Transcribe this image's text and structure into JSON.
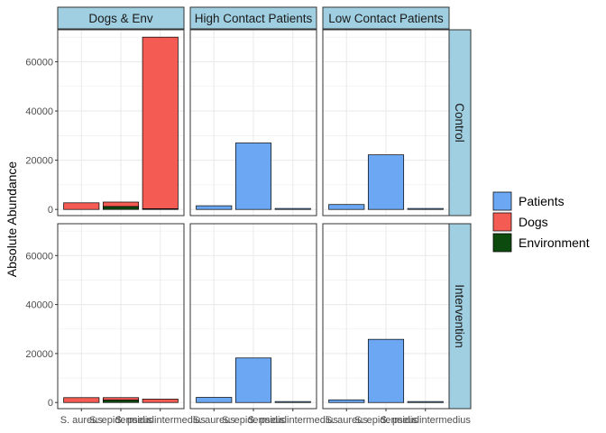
{
  "chart_data": {
    "type": "bar",
    "stacked": true,
    "ylabel": "Absolute Abundance",
    "xlabel": "",
    "ylim": [
      -2500,
      73000
    ],
    "y_ticks": [
      "0",
      "20000",
      "40000",
      "60000"
    ],
    "categories": [
      "S. aureus",
      "S. epidermidis",
      "S. pseudintermedius"
    ],
    "columns": [
      "Dogs & Env",
      "High Contact Patients",
      "Low Contact Patients"
    ],
    "rows": [
      "Control",
      "Intervention"
    ],
    "legend": {
      "position": "right",
      "entries": [
        {
          "name": "Patients",
          "color": "#6BA7F2"
        },
        {
          "name": "Dogs",
          "color": "#F35B53"
        },
        {
          "name": "Environment",
          "color": "#0C4A0E"
        }
      ]
    },
    "colors": {
      "strip_bg": "#A0CFE2",
      "grid": "#EBEBEB",
      "panel_border": "#333333",
      "bar_edge": "#000000"
    },
    "panels": [
      {
        "row": "Control",
        "column": "Dogs & Env",
        "bars": [
          {
            "category": "S. aureus",
            "segments": [
              {
                "series": "Dogs",
                "value": 2700
              }
            ]
          },
          {
            "category": "S. epidermidis",
            "segments": [
              {
                "series": "Environment",
                "value": 1200
              },
              {
                "series": "Dogs",
                "value": 1800
              }
            ]
          },
          {
            "category": "S. pseudintermedius",
            "segments": [
              {
                "series": "Environment",
                "value": 300
              },
              {
                "series": "Dogs",
                "value": 69700
              }
            ]
          }
        ]
      },
      {
        "row": "Control",
        "column": "High Contact Patients",
        "bars": [
          {
            "category": "S. aureus",
            "segments": [
              {
                "series": "Patients",
                "value": 1500
              }
            ]
          },
          {
            "category": "S. epidermidis",
            "segments": [
              {
                "series": "Patients",
                "value": 27000
              }
            ]
          },
          {
            "category": "S. pseudintermedius",
            "segments": [
              {
                "series": "Patients",
                "value": 400
              }
            ]
          }
        ]
      },
      {
        "row": "Control",
        "column": "Low Contact Patients",
        "bars": [
          {
            "category": "S. aureus",
            "segments": [
              {
                "series": "Patients",
                "value": 2000
              }
            ]
          },
          {
            "category": "S. epidermidis",
            "segments": [
              {
                "series": "Patients",
                "value": 22200
              }
            ]
          },
          {
            "category": "S. pseudintermedius",
            "segments": [
              {
                "series": "Patients",
                "value": 400
              }
            ]
          }
        ]
      },
      {
        "row": "Intervention",
        "column": "Dogs & Env",
        "bars": [
          {
            "category": "S. aureus",
            "segments": [
              {
                "series": "Dogs",
                "value": 2000
              }
            ]
          },
          {
            "category": "S. epidermidis",
            "segments": [
              {
                "series": "Environment",
                "value": 1000
              },
              {
                "series": "Dogs",
                "value": 1000
              }
            ]
          },
          {
            "category": "S. pseudintermedius",
            "segments": [
              {
                "series": "Dogs",
                "value": 1400
              }
            ]
          }
        ]
      },
      {
        "row": "Intervention",
        "column": "High Contact Patients",
        "bars": [
          {
            "category": "S. aureus",
            "segments": [
              {
                "series": "Patients",
                "value": 2100
              }
            ]
          },
          {
            "category": "S. epidermidis",
            "segments": [
              {
                "series": "Patients",
                "value": 18200
              }
            ]
          },
          {
            "category": "S. pseudintermedius",
            "segments": [
              {
                "series": "Patients",
                "value": 400
              }
            ]
          }
        ]
      },
      {
        "row": "Intervention",
        "column": "Low Contact Patients",
        "bars": [
          {
            "category": "S. aureus",
            "segments": [
              {
                "series": "Patients",
                "value": 1100
              }
            ]
          },
          {
            "category": "S. epidermidis",
            "segments": [
              {
                "series": "Patients",
                "value": 25800
              }
            ]
          },
          {
            "category": "S. pseudintermedius",
            "segments": [
              {
                "series": "Patients",
                "value": 400
              }
            ]
          }
        ]
      }
    ]
  }
}
